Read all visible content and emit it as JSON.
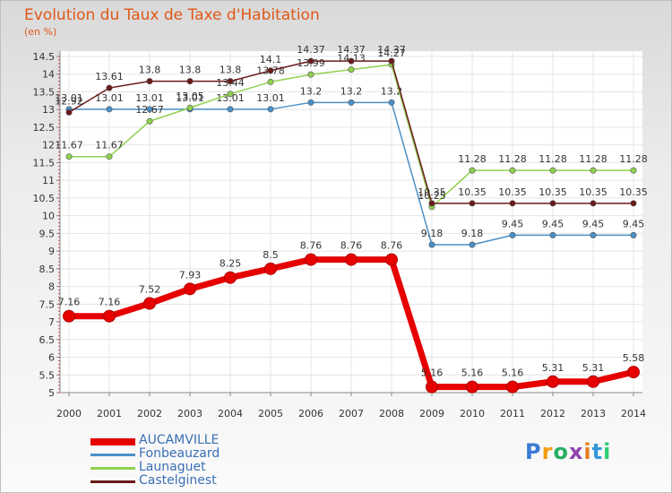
{
  "chart_data": {
    "type": "line",
    "title": "Evolution du Taux de Taxe d'Habitation",
    "subtitle": "(en %)",
    "x": [
      "2000",
      "2001",
      "2002",
      "2003",
      "2004",
      "2005",
      "2006",
      "2007",
      "2008",
      "2009",
      "2010",
      "2011",
      "2012",
      "2013",
      "2014"
    ],
    "ylim": [
      5,
      14.5
    ],
    "yticks": [
      5,
      5.5,
      6,
      6.5,
      7,
      7.5,
      8,
      8.5,
      9,
      9.5,
      10,
      10.5,
      11,
      11.5,
      12,
      12.5,
      13,
      13.5,
      14,
      14.5
    ],
    "grid": true,
    "legend_position": "bottom-left",
    "series": [
      {
        "name": "AUCAMVILLE",
        "color": "#e60000",
        "emphasis": true,
        "values": [
          7.16,
          7.16,
          7.52,
          7.93,
          8.25,
          8.5,
          8.76,
          8.76,
          8.76,
          5.16,
          5.16,
          5.16,
          5.31,
          5.31,
          5.58
        ]
      },
      {
        "name": "Fonbeauzard",
        "color": "#4a90c8",
        "emphasis": false,
        "values": [
          13.01,
          13.01,
          13.01,
          13.01,
          13.01,
          13.01,
          13.2,
          13.2,
          13.2,
          9.18,
          9.18,
          9.45,
          9.45,
          9.45,
          9.45
        ]
      },
      {
        "name": "Launaguet",
        "color": "#8fd14f",
        "emphasis": false,
        "values": [
          11.67,
          11.67,
          12.67,
          13.05,
          13.44,
          13.78,
          13.99,
          14.13,
          14.27,
          10.25,
          11.28,
          11.28,
          11.28,
          11.28,
          11.28
        ]
      },
      {
        "name": "Castelginest",
        "color": "#6b1a1a",
        "emphasis": false,
        "values": [
          12.92,
          13.61,
          13.8,
          13.8,
          13.8,
          14.1,
          14.37,
          14.37,
          14.37,
          10.35,
          10.35,
          10.35,
          10.35,
          10.35,
          10.35
        ]
      }
    ]
  },
  "logo": {
    "text": "Proxiti",
    "colors": [
      "#3a7bd5",
      "#f39c12",
      "#27ae60",
      "#8e44ad",
      "#e67e22",
      "#3498db",
      "#2ecc71"
    ]
  }
}
